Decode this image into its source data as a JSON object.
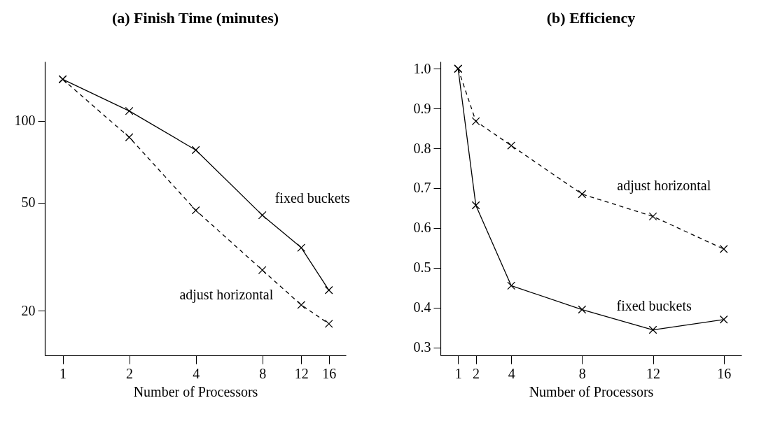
{
  "chart_data": [
    {
      "type": "line",
      "title": "(a)  Finish Time (minutes)",
      "xlabel": "Number of Processors",
      "x": [
        1,
        2,
        4,
        8,
        12,
        16
      ],
      "log": "xy",
      "xlim": [
        0.83,
        19.1
      ],
      "xticks": [
        1,
        2,
        4,
        8,
        12,
        16
      ],
      "ylim": [
        13.7,
        165
      ],
      "yticks": [
        20,
        50,
        100
      ],
      "grid": false,
      "legend": false,
      "marker": "cross",
      "series": [
        {
          "name": "fixed buckets",
          "color": "#000000",
          "line_style": "solid",
          "values": [
            142,
            108.6,
            78,
            44.9,
            34.1,
            23.8
          ]
        },
        {
          "name": "adjust horizontal",
          "color": "#000000",
          "line_style": "dashed",
          "values": [
            142,
            86.9,
            46.8,
            28.2,
            21.0,
            17.9
          ]
        }
      ]
    },
    {
      "type": "line",
      "title": "(b)  Efficiency",
      "xlabel": "Number of Processors",
      "x": [
        1,
        2,
        4,
        8,
        12,
        16
      ],
      "xlim": [
        0,
        17
      ],
      "xticks": [
        1,
        2,
        4,
        8,
        12,
        16
      ],
      "ylim": [
        0.28,
        1.018
      ],
      "yticks": [
        {
          "value": 0.3,
          "label": "0.3"
        },
        {
          "value": 0.4,
          "label": "0.4"
        },
        {
          "value": 0.5,
          "label": "0.5"
        },
        {
          "value": 0.6,
          "label": "0.6"
        },
        {
          "value": 0.7,
          "label": "0.7"
        },
        {
          "value": 0.8,
          "label": "0.8"
        },
        {
          "value": 0.9,
          "label": "0.9"
        },
        {
          "value": 1,
          "label": "1.0"
        }
      ],
      "grid": false,
      "legend": false,
      "marker": "cross",
      "series": [
        {
          "name": "adjust horizontal",
          "color": "#000000",
          "line_style": "dashed",
          "values": [
            1.0,
            0.868,
            0.807,
            0.685,
            0.629,
            0.547
          ]
        },
        {
          "name": "fixed buckets",
          "color": "#000000",
          "line_style": "solid",
          "values": [
            1.0,
            0.657,
            0.455,
            0.395,
            0.344,
            0.37
          ]
        }
      ]
    }
  ]
}
